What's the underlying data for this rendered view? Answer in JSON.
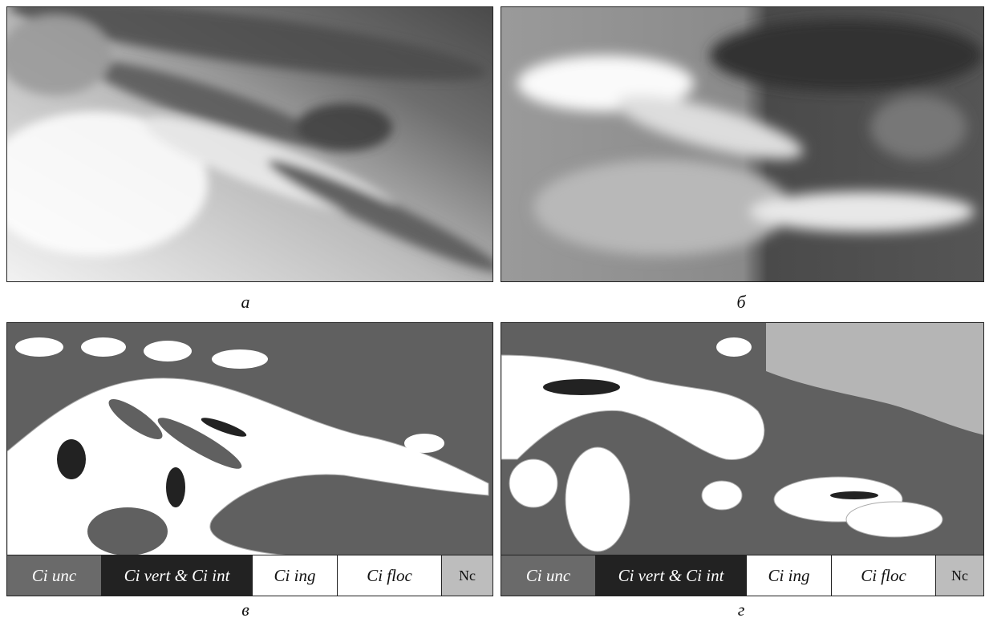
{
  "panels": [
    {
      "label": "а"
    },
    {
      "label": "б"
    },
    {
      "label": "в",
      "legend": [
        "Ci unc",
        "Ci vert & Ci int",
        "Ci ing",
        "Ci floc",
        "Nc"
      ]
    },
    {
      "label": "г",
      "legend": [
        "Ci unc",
        "Ci vert & Ci int",
        "Ci ing",
        "Ci floc",
        "Nc"
      ]
    }
  ]
}
